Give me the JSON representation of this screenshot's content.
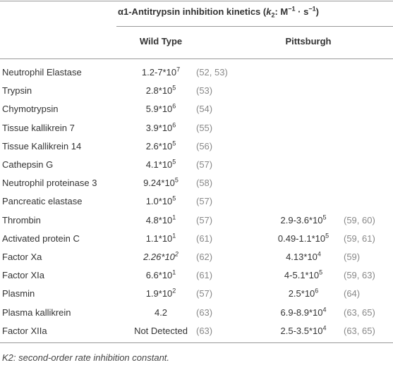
{
  "header": {
    "title": {
      "lead": "α1-Antitrypsin inhibition kinetics (",
      "k": "k",
      "sub": "2",
      "mid": ": M",
      "sup1": "−1",
      "dot": " · s",
      "sup2": "−1",
      "end": ")"
    },
    "columns": [
      "Wild Type",
      "Pittsburgh"
    ]
  },
  "rows": [
    {
      "name": "Neutrophil Elastase",
      "wild_type": {
        "value": {
          "base": "1.2-7*10",
          "exp": "7"
        },
        "ref": "(52, 53)"
      }
    },
    {
      "name": "Trypsin",
      "wild_type": {
        "value": {
          "base": "2.8*10",
          "exp": "5"
        },
        "ref": "(53)"
      }
    },
    {
      "name": "Chymotrypsin",
      "wild_type": {
        "value": {
          "base": "5.9*10",
          "exp": "6"
        },
        "ref": "(54)"
      }
    },
    {
      "name": "Tissue kallikrein 7",
      "wild_type": {
        "value": {
          "base": "3.9*10",
          "exp": "6"
        },
        "ref": "(55)"
      }
    },
    {
      "name": "Tissue Kallikrein 14",
      "wild_type": {
        "value": {
          "base": "2.6*10",
          "exp": "5"
        },
        "ref": "(56)"
      }
    },
    {
      "name": "Cathepsin G",
      "wild_type": {
        "value": {
          "base": "4.1*10",
          "exp": "5"
        },
        "ref": "(57)"
      }
    },
    {
      "name": "Neutrophil proteinase 3",
      "wild_type": {
        "value": {
          "base": "9.24*10",
          "exp": "5"
        },
        "ref": "(58)"
      }
    },
    {
      "name": "Pancreatic elastase",
      "wild_type": {
        "value": {
          "base": "1.0*10",
          "exp": "5"
        },
        "ref": "(57)"
      }
    },
    {
      "name": "Thrombin",
      "wild_type": {
        "value": {
          "base": "4.8*10",
          "exp": "1"
        },
        "ref": "(57)"
      },
      "pittsburgh": {
        "value": {
          "base": "2.9-3.6*10",
          "exp": "5"
        },
        "ref": "(59, 60)"
      }
    },
    {
      "name": "Activated protein C",
      "wild_type": {
        "value": {
          "base": "1.1*10",
          "exp": "1"
        },
        "ref": "(61)"
      },
      "pittsburgh": {
        "value": {
          "base": "0.49-1.1*10",
          "exp": "5"
        },
        "ref": "(59, 61)"
      }
    },
    {
      "name": "Factor Xa",
      "wild_type": {
        "value": {
          "base": "2.26*10",
          "exp": "2",
          "italic": true
        },
        "ref": "(62)"
      },
      "pittsburgh": {
        "value": {
          "base": "4.13*10",
          "exp": "4"
        },
        "ref": "(59)"
      }
    },
    {
      "name": "Factor XIa",
      "wild_type": {
        "value": {
          "base": "6.6*10",
          "exp": "1"
        },
        "ref": "(61)"
      },
      "pittsburgh": {
        "value": {
          "base": "4-5.1*10",
          "exp": "5"
        },
        "ref": "(59, 63)"
      }
    },
    {
      "name": "Plasmin",
      "wild_type": {
        "value": {
          "base": "1.9*10",
          "exp": "2"
        },
        "ref": "(57)"
      },
      "pittsburgh": {
        "value": {
          "base": "2.5*10",
          "exp": "6"
        },
        "ref": "(64)"
      }
    },
    {
      "name": "Plasma kallikrein",
      "wild_type": {
        "value": {
          "base": "4.2"
        },
        "ref": "(63)"
      },
      "pittsburgh": {
        "value": {
          "base": "6.9-8.9*10",
          "exp": "4"
        },
        "ref": "(63, 65)"
      }
    },
    {
      "name": "Factor XIIa",
      "wild_type": {
        "value": {
          "base": "Not Detected"
        },
        "ref": "(63)"
      },
      "pittsburgh": {
        "value": {
          "base": "2.5-3.5*10",
          "exp": "4"
        },
        "ref": "(63, 65)"
      }
    }
  ],
  "footnote": "K2: second-order rate inhibition constant."
}
